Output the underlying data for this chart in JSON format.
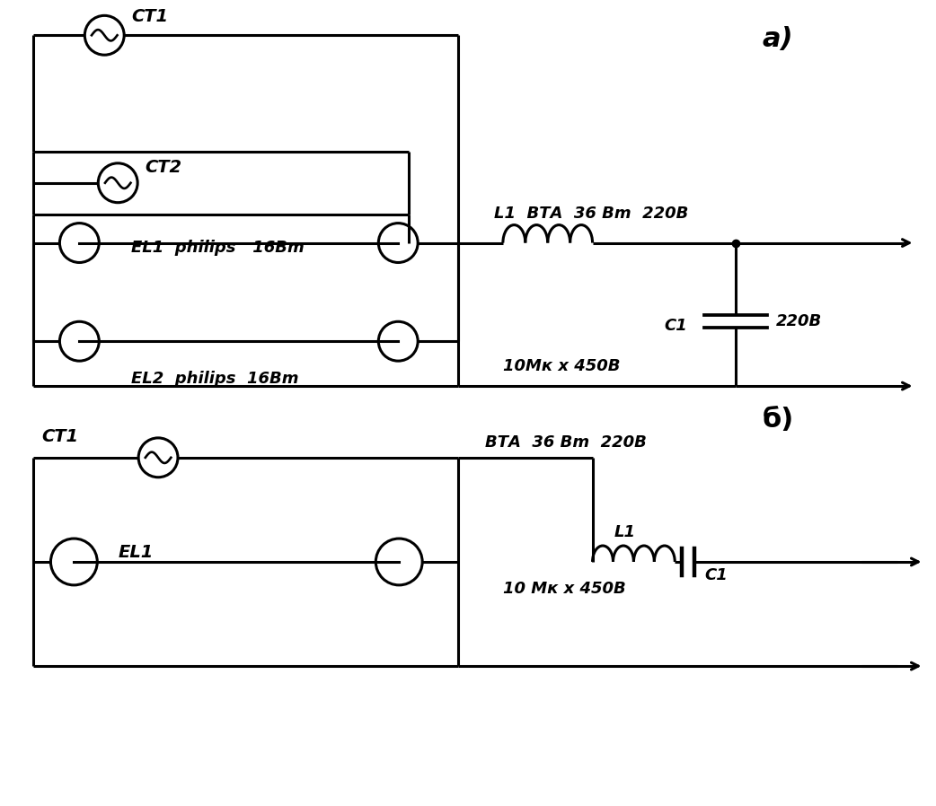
{
  "fig_width": 10.42,
  "fig_height": 8.98,
  "lw": 2.2,
  "label_a": "а)",
  "label_b": "б)",
  "label_CT1_a": "CT1",
  "label_CT2_a": "CT2",
  "label_EL1_a": "EL1  philips   16Вm",
  "label_EL2_a": "EL2  philips  16Вm",
  "label_L1_a": "L1  ВТА  36 Вm  220В",
  "label_C1_a": "C1",
  "label_220_a": "220В",
  "label_cap_val_a": "10Мк х 450В",
  "label_CT1_b": "CT1",
  "label_EL1_b": "EL1",
  "label_BTA_b": "ВТА  36 Вm  220В",
  "label_L1_b": "L1",
  "label_cap_val_b": "10 Мк х 450В",
  "label_C1_b": "C1"
}
